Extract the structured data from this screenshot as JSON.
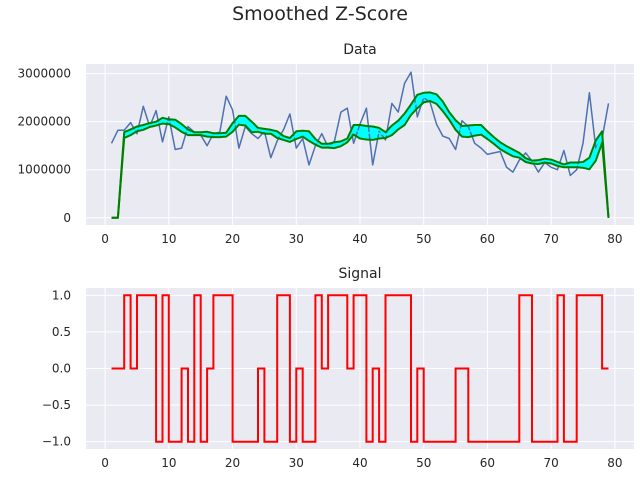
{
  "figure": {
    "title": "Smoothed Z-Score"
  },
  "colors": {
    "background": "#eaeaf2",
    "grid": "#ffffff",
    "data_line": "#4c72b0",
    "band_fill": "#00ffff",
    "band_edge": "#008000",
    "signal_line": "#ff0000"
  },
  "chart_data": [
    {
      "type": "line",
      "title": "Data",
      "xlabel": "",
      "ylabel": "",
      "xlim": [
        -3,
        83
      ],
      "ylim": [
        -150000,
        3200000
      ],
      "xticks": [
        0,
        10,
        20,
        30,
        40,
        50,
        60,
        70,
        80
      ],
      "yticks": [
        0,
        1000000,
        2000000,
        3000000
      ],
      "ytick_labels": [
        "0",
        "1000000",
        "2000000",
        "3000000"
      ],
      "x": [
        1,
        2,
        3,
        4,
        5,
        6,
        7,
        8,
        9,
        10,
        11,
        12,
        13,
        14,
        15,
        16,
        17,
        18,
        19,
        20,
        21,
        22,
        23,
        24,
        25,
        26,
        27,
        28,
        29,
        30,
        31,
        32,
        33,
        34,
        35,
        36,
        37,
        38,
        39,
        40,
        41,
        42,
        43,
        44,
        45,
        46,
        47,
        48,
        49,
        50,
        51,
        52,
        53,
        54,
        55,
        56,
        57,
        58,
        59,
        60,
        61,
        62,
        63,
        64,
        65,
        66,
        67,
        68,
        69,
        70,
        71,
        72,
        73,
        74,
        75,
        76,
        77,
        78,
        79
      ],
      "series": [
        {
          "name": "data",
          "values": [
            1550000,
            1820000,
            1820000,
            1980000,
            1750000,
            2320000,
            1900000,
            2230000,
            1580000,
            2100000,
            1420000,
            1450000,
            1900000,
            1780000,
            1720000,
            1500000,
            1750000,
            1780000,
            2530000,
            2240000,
            1450000,
            1900000,
            1750000,
            1650000,
            1800000,
            1250000,
            1600000,
            1830000,
            2160000,
            1450000,
            1650000,
            1100000,
            1500000,
            1750000,
            1470000,
            1600000,
            2200000,
            2280000,
            1550000,
            1950000,
            2280000,
            1100000,
            1800000,
            1620000,
            2380000,
            2200000,
            2800000,
            3030000,
            2100000,
            2500000,
            2400000,
            1950000,
            1700000,
            1650000,
            1420000,
            2020000,
            1900000,
            1550000,
            1450000,
            1320000,
            1350000,
            1380000,
            1050000,
            950000,
            1200000,
            1350000,
            1180000,
            950000,
            1150000,
            1050000,
            1000000,
            1400000,
            880000,
            1000000,
            1550000,
            2600000,
            1450000,
            1650000,
            2380000
          ]
        },
        {
          "name": "avg_filter",
          "values": [
            0,
            0,
            1720000,
            1780000,
            1850000,
            1880000,
            1930000,
            1960000,
            2020000,
            2000000,
            1960000,
            1870000,
            1780000,
            1750000,
            1750000,
            1740000,
            1720000,
            1720000,
            1730000,
            1880000,
            2030000,
            2020000,
            1890000,
            1830000,
            1800000,
            1790000,
            1730000,
            1660000,
            1620000,
            1720000,
            1750000,
            1700000,
            1580000,
            1500000,
            1500000,
            1510000,
            1540000,
            1610000,
            1830000,
            1790000,
            1770000,
            1760000,
            1760000,
            1720000,
            1820000,
            1930000,
            2050000,
            2250000,
            2420000,
            2500000,
            2520000,
            2470000,
            2320000,
            2120000,
            1930000,
            1800000,
            1800000,
            1820000,
            1830000,
            1720000,
            1610000,
            1500000,
            1420000,
            1350000,
            1300000,
            1200000,
            1160000,
            1160000,
            1190000,
            1170000,
            1120000,
            1080000,
            1100000,
            1100000,
            1100000,
            1130000,
            1400000,
            1680000,
            0
          ]
        },
        {
          "name": "upper_band",
          "values": [
            0,
            0,
            1780000,
            1840000,
            1900000,
            1930000,
            1970000,
            2000000,
            2080000,
            2050000,
            2040000,
            1950000,
            1840000,
            1780000,
            1780000,
            1790000,
            1760000,
            1760000,
            1770000,
            1970000,
            2120000,
            2120000,
            2000000,
            1870000,
            1850000,
            1830000,
            1800000,
            1700000,
            1660000,
            1800000,
            1810000,
            1800000,
            1640000,
            1540000,
            1540000,
            1570000,
            1590000,
            1650000,
            1930000,
            1930000,
            1910000,
            1900000,
            1870000,
            1780000,
            1920000,
            2020000,
            2170000,
            2360000,
            2560000,
            2600000,
            2610000,
            2570000,
            2420000,
            2200000,
            2030000,
            1910000,
            1920000,
            1930000,
            1930000,
            1800000,
            1680000,
            1570000,
            1490000,
            1420000,
            1350000,
            1240000,
            1190000,
            1200000,
            1230000,
            1210000,
            1160000,
            1110000,
            1150000,
            1150000,
            1160000,
            1250000,
            1610000,
            1800000,
            0
          ]
        },
        {
          "name": "lower_band",
          "values": [
            0,
            0,
            1660000,
            1720000,
            1800000,
            1830000,
            1890000,
            1920000,
            1960000,
            1950000,
            1880000,
            1790000,
            1720000,
            1720000,
            1720000,
            1690000,
            1680000,
            1680000,
            1690000,
            1790000,
            1940000,
            1920000,
            1780000,
            1790000,
            1750000,
            1750000,
            1660000,
            1620000,
            1580000,
            1640000,
            1690000,
            1600000,
            1520000,
            1460000,
            1460000,
            1450000,
            1490000,
            1570000,
            1730000,
            1650000,
            1630000,
            1620000,
            1650000,
            1660000,
            1720000,
            1840000,
            1930000,
            2140000,
            2280000,
            2400000,
            2430000,
            2370000,
            2220000,
            2040000,
            1830000,
            1690000,
            1680000,
            1710000,
            1730000,
            1640000,
            1540000,
            1430000,
            1350000,
            1280000,
            1250000,
            1160000,
            1130000,
            1120000,
            1150000,
            1130000,
            1080000,
            1050000,
            1050000,
            1050000,
            1040000,
            1010000,
            1190000,
            1560000,
            0
          ]
        }
      ]
    },
    {
      "type": "line",
      "title": "Signal",
      "xlabel": "",
      "ylabel": "",
      "xlim": [
        -3,
        83
      ],
      "ylim": [
        -1.1,
        1.1
      ],
      "xticks": [
        0,
        10,
        20,
        30,
        40,
        50,
        60,
        70,
        80
      ],
      "yticks": [
        1.0,
        0.5,
        0.0,
        -0.5,
        -1.0
      ],
      "ytick_labels": [
        "1.0",
        "0.5",
        "0.0",
        "−0.5",
        "−1.0"
      ],
      "step": "post",
      "x": [
        1,
        2,
        3,
        4,
        5,
        6,
        7,
        8,
        9,
        10,
        11,
        12,
        13,
        14,
        15,
        16,
        17,
        18,
        19,
        20,
        21,
        22,
        23,
        24,
        25,
        26,
        27,
        28,
        29,
        30,
        31,
        32,
        33,
        34,
        35,
        36,
        37,
        38,
        39,
        40,
        41,
        42,
        43,
        44,
        45,
        46,
        47,
        48,
        49,
        50,
        51,
        52,
        53,
        54,
        55,
        56,
        57,
        58,
        59,
        60,
        61,
        62,
        63,
        64,
        65,
        66,
        67,
        68,
        69,
        70,
        71,
        72,
        73,
        74,
        75,
        76,
        77,
        78,
        79
      ],
      "series": [
        {
          "name": "signal",
          "values": [
            0,
            0,
            1,
            0,
            1,
            1,
            1,
            -1,
            1,
            -1,
            -1,
            0,
            -1,
            1,
            -1,
            0,
            1,
            1,
            1,
            -1,
            -1,
            -1,
            -1,
            0,
            -1,
            -1,
            1,
            1,
            -1,
            0,
            -1,
            -1,
            1,
            0,
            1,
            1,
            1,
            0,
            1,
            1,
            -1,
            0,
            -1,
            1,
            1,
            1,
            1,
            -1,
            0,
            -1,
            -1,
            -1,
            -1,
            -1,
            0,
            0,
            -1,
            -1,
            -1,
            -1,
            -1,
            -1,
            -1,
            -1,
            1,
            1,
            -1,
            -1,
            -1,
            -1,
            1,
            -1,
            -1,
            1,
            1,
            1,
            1,
            0,
            0
          ]
        }
      ]
    }
  ]
}
